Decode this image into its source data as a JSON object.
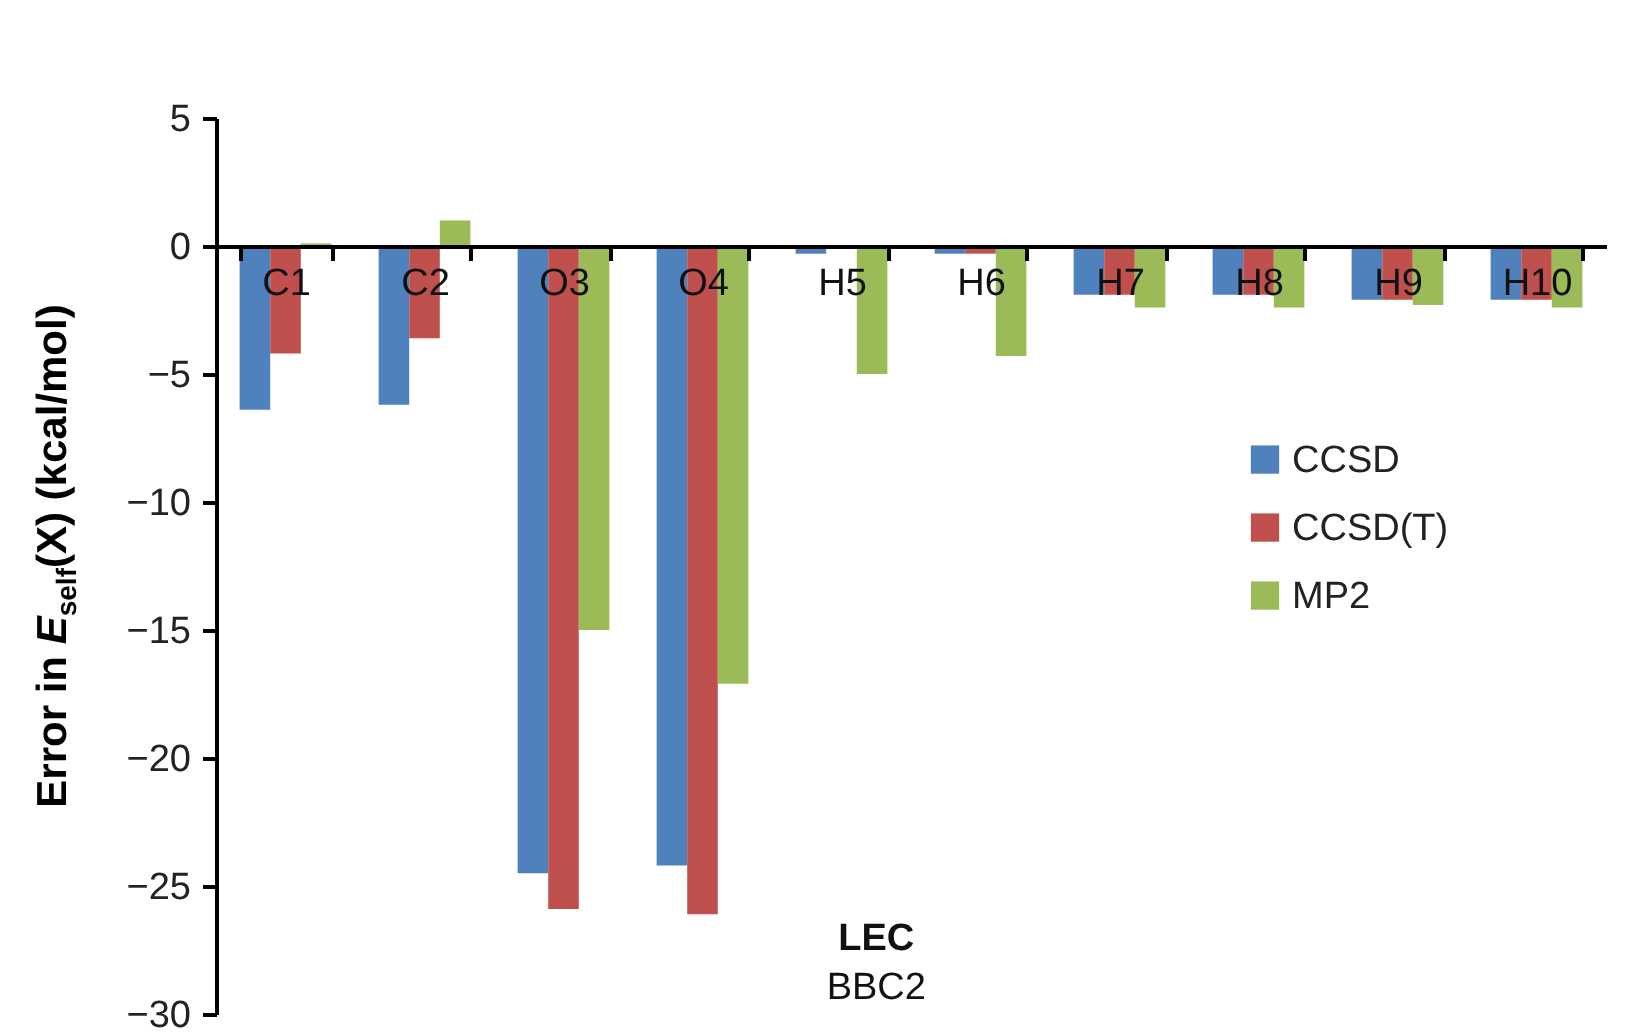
{
  "chart_data": {
    "type": "bar",
    "ylabel": "Error in E$_{self}$(X)   (kcal/mol)",
    "categories": [
      "C1",
      "C2",
      "O3",
      "O4",
      "H5",
      "H6",
      "H7",
      "H8",
      "H9",
      "H10"
    ],
    "series": [
      {
        "name": "CCSD",
        "color": "#4f81bd",
        "values": [
          -6.4,
          -6.2,
          -24.5,
          -24.2,
          -0.3,
          -0.3,
          -1.9,
          -1.9,
          -2.1,
          -2.1
        ]
      },
      {
        "name": "CCSD(T)",
        "color": "#c0504d",
        "values": [
          -4.2,
          -3.6,
          -25.9,
          -26.1,
          0,
          -0.3,
          -1.9,
          -1.9,
          -2.1,
          -2.1
        ]
      },
      {
        "name": "MP2",
        "color": "#9bbb59",
        "values": [
          0.1,
          1.0,
          -15.0,
          -17.1,
          -5.0,
          -4.3,
          -2.4,
          -2.4,
          -2.3,
          -2.4
        ]
      }
    ],
    "ylim": [
      -30,
      5
    ],
    "yticks": [
      -30,
      -25,
      -20,
      -15,
      -10,
      -5,
      0,
      5
    ],
    "grid": false,
    "legend": "right",
    "annotations": [
      "LEC",
      "BBC2"
    ]
  }
}
